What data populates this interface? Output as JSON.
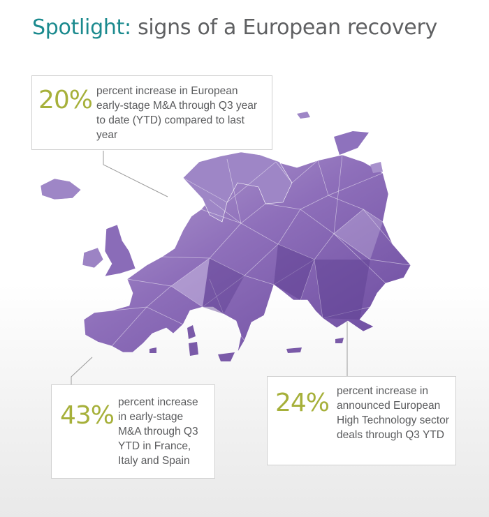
{
  "title": {
    "accent": "Spotlight:",
    "rest": "signs of a European recovery"
  },
  "colors": {
    "title_accent": "#1b8a8e",
    "percent": "#a6b03a",
    "map": "#7a5aa8",
    "text": "#5a5b5d"
  },
  "callouts": [
    {
      "percent": "20%",
      "text": "percent increase in European early-stage M&A through Q3 year to date (YTD) compared to last year"
    },
    {
      "percent": "43%",
      "text": "percent increase in early-stage M&A through Q3 YTD in France, Italy and Spain"
    },
    {
      "percent": "24%",
      "text": "percent increase in announced European High Technology sector deals through Q3 YTD"
    }
  ]
}
